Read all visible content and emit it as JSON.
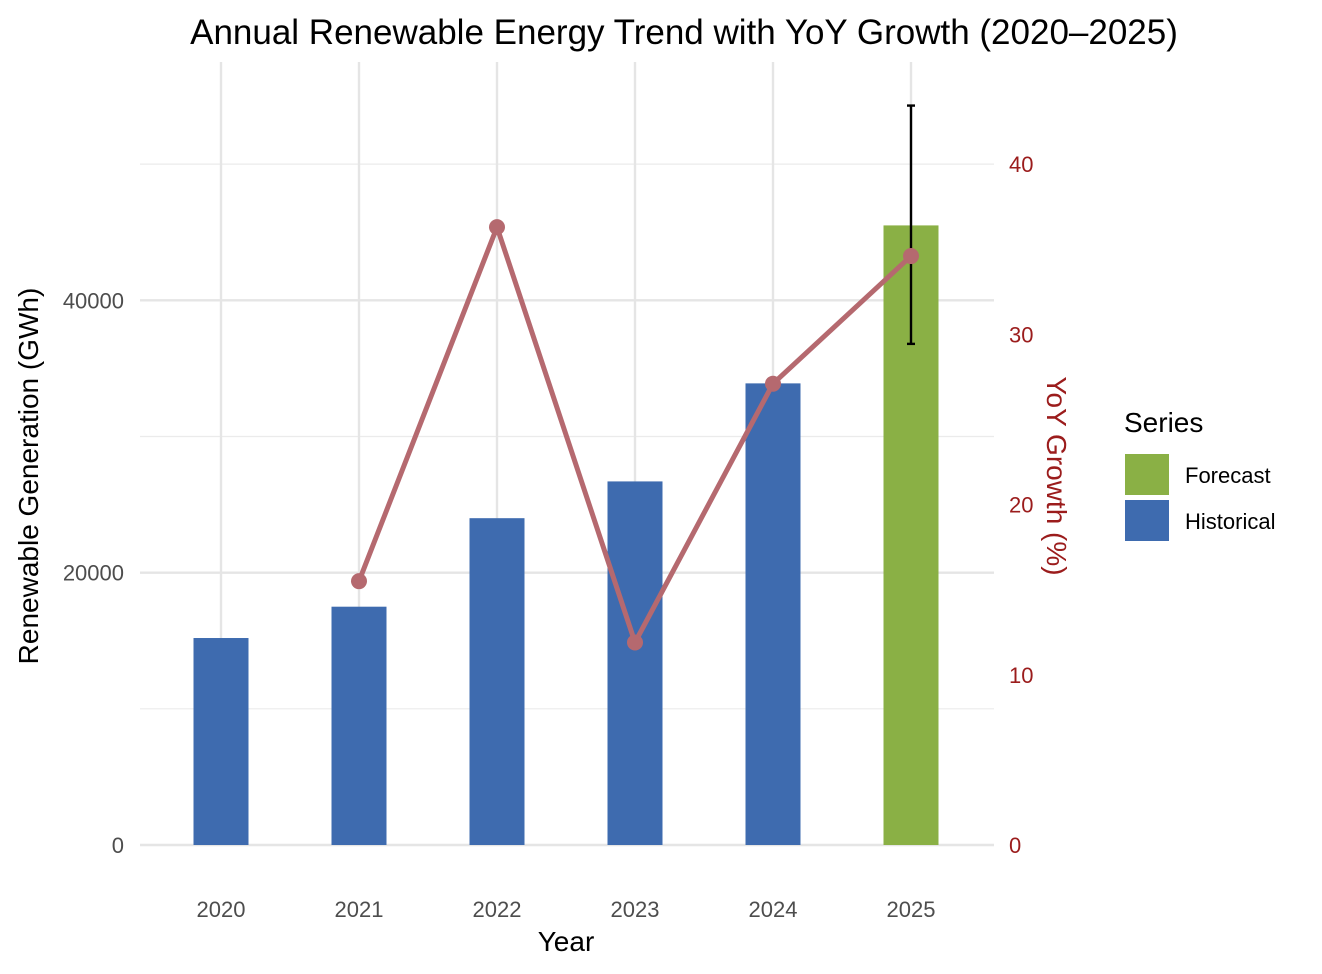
{
  "chart_data": {
    "type": "bar",
    "title": "Annual Renewable Energy Trend with YoY Growth (2020–2025)",
    "xlabel": "Year",
    "ylabel": "Renewable Generation (GWh)",
    "y2label": "YoY Growth (%)",
    "categories": [
      "2020",
      "2021",
      "2022",
      "2023",
      "2024",
      "2025"
    ],
    "bars": {
      "values": [
        15200,
        17500,
        24000,
        26700,
        33900,
        45500
      ],
      "series_of_bar": [
        "Historical",
        "Historical",
        "Historical",
        "Historical",
        "Historical",
        "Forecast"
      ],
      "error": {
        "category": "2025",
        "low": 36800,
        "high": 54300
      }
    },
    "growth_line": {
      "x": [
        "2021",
        "2022",
        "2023",
        "2024",
        "2025"
      ],
      "values": [
        15.5,
        36.3,
        11.9,
        27.1,
        34.6
      ],
      "color": "#b5696f"
    },
    "ylim": [
      0,
      57500
    ],
    "y_ticks": [
      "0",
      "20000",
      "40000"
    ],
    "y_tick_values": [
      0,
      20000,
      40000
    ],
    "y_minor_values": [
      10000,
      30000,
      50000
    ],
    "y2lim": [
      0,
      46
    ],
    "y2_ticks": [
      "0",
      "10",
      "20",
      "30",
      "40"
    ],
    "y2_tick_values": [
      0,
      10,
      20,
      30,
      40
    ],
    "grid": true,
    "legend": {
      "title": "Series",
      "placement": "right",
      "entries": [
        {
          "label": "Forecast",
          "color": "#8ab045"
        },
        {
          "label": "Historical",
          "color": "#3e6baf"
        }
      ]
    }
  }
}
